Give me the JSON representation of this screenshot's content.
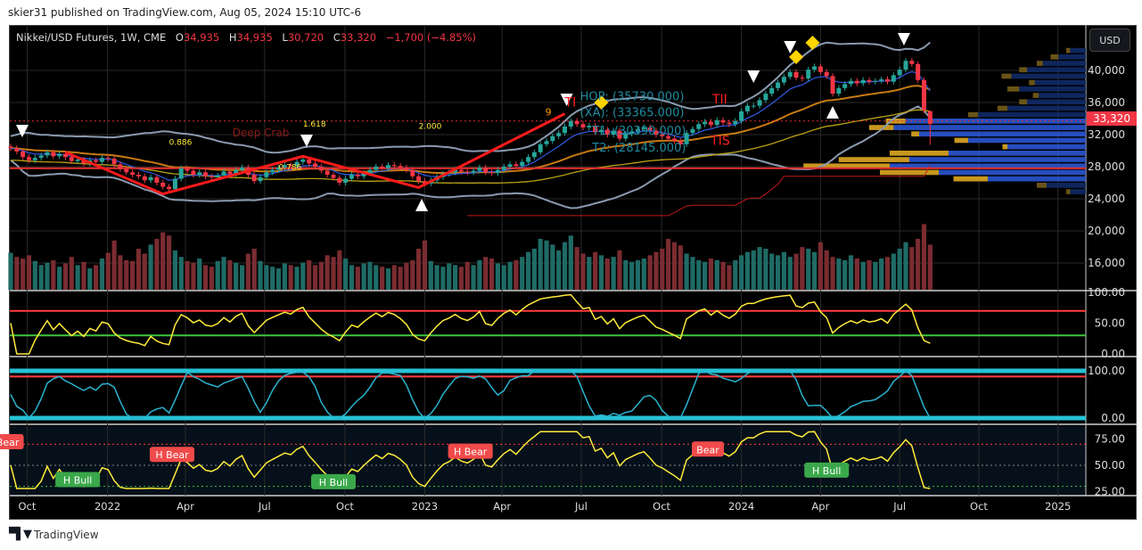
{
  "header": {
    "publisher_line": "skier31 published on TradingView.com, Aug 05, 2024 15:10 UTC-6"
  },
  "legend": {
    "symbol": "Nikkei/USD Futures, 1W, CME",
    "o_label": "O",
    "o": "34,935",
    "h_label": "H",
    "h": "34,935",
    "l_label": "L",
    "l": "30,720",
    "c_label": "C",
    "c": "33,320",
    "change": "−1,700 (−4.85%)"
  },
  "currency_button": "USD",
  "last_price_tag": "33,320",
  "footer": {
    "brand": "TradingView",
    "logo": "TV"
  },
  "colors": {
    "up": "#26a69a",
    "down": "#f23645",
    "up_vol": "#1f6b66",
    "down_vol": "#7a2c31",
    "rsi": "#ffeb3b",
    "stoch": "#2bb3d0",
    "zigzag": "#ff1a1a"
  },
  "chart_data": {
    "type": "candlestick",
    "title": "Nikkei/USD Futures, 1W, CME",
    "first_week": "2021-09-13",
    "closes": [
      30300,
      29900,
      29200,
      28800,
      29100,
      29400,
      29800,
      29300,
      29600,
      29200,
      28700,
      28900,
      28400,
      28800,
      28600,
      29100,
      29000,
      28300,
      27700,
      27300,
      27000,
      26800,
      26300,
      26700,
      26000,
      25500,
      25200,
      26500,
      27800,
      27500,
      27000,
      27300,
      26800,
      26700,
      26900,
      27400,
      27100,
      27600,
      27900,
      27000,
      26200,
      26700,
      27300,
      27600,
      27900,
      28200,
      28100,
      28600,
      28900,
      28400,
      28000,
      27500,
      27000,
      26600,
      26000,
      26500,
      27000,
      26800,
      27200,
      27600,
      28000,
      27800,
      28200,
      28100,
      27900,
      27600,
      26800,
      26200,
      25900,
      26300,
      26700,
      27100,
      27300,
      27600,
      27400,
      27300,
      27500,
      27900,
      27300,
      27200,
      27600,
      28000,
      28300,
      28100,
      28600,
      29200,
      29800,
      30800,
      31200,
      31800,
      32200,
      33000,
      33700,
      33300,
      32900,
      33100,
      32300,
      32600,
      32000,
      32500,
      31500,
      32100,
      32400,
      32700,
      32900,
      32500,
      32000,
      31800,
      31500,
      31200,
      30800,
      32200,
      32700,
      33300,
      33600,
      33200,
      33800,
      33500,
      33300,
      33700,
      34900,
      35600,
      35600,
      36300,
      37100,
      37800,
      38500,
      39200,
      39800,
      39100,
      39000,
      40100,
      40500,
      39800,
      39300,
      37100,
      37800,
      38300,
      38700,
      38400,
      38800,
      38600,
      38700,
      38900,
      38600,
      39400,
      40100,
      41200,
      40800,
      38800,
      35020,
      33320
    ],
    "last_bar": {
      "open": 34935,
      "high": 34935,
      "low": 30720,
      "close": 33320
    },
    "volumes": [
      45,
      40,
      38,
      42,
      35,
      30,
      33,
      36,
      28,
      32,
      40,
      30,
      34,
      26,
      30,
      38,
      45,
      60,
      42,
      36,
      35,
      50,
      44,
      55,
      62,
      70,
      66,
      48,
      40,
      35,
      33,
      38,
      30,
      28,
      35,
      40,
      36,
      33,
      30,
      44,
      50,
      35,
      30,
      28,
      26,
      32,
      30,
      28,
      33,
      36,
      30,
      34,
      42,
      40,
      48,
      38,
      30,
      28,
      32,
      34,
      30,
      28,
      26,
      30,
      28,
      33,
      36,
      50,
      60,
      35,
      30,
      28,
      32,
      30,
      28,
      34,
      30,
      36,
      40,
      38,
      32,
      30,
      34,
      36,
      40,
      46,
      50,
      62,
      60,
      55,
      48,
      58,
      66,
      52,
      44,
      40,
      46,
      42,
      38,
      40,
      48,
      36,
      34,
      36,
      38,
      42,
      46,
      50,
      62,
      58,
      54,
      44,
      40,
      36,
      34,
      38,
      36,
      34,
      30,
      36,
      42,
      46,
      48,
      52,
      50,
      44,
      42,
      46,
      40,
      44,
      52,
      50,
      46,
      58,
      48,
      40,
      38,
      36,
      42,
      38,
      34,
      36,
      34,
      38,
      40,
      44,
      50,
      58,
      52,
      62,
      80,
      55
    ],
    "price_axis": {
      "ticks": [
        {
          "price": 40000,
          "label": "40,000"
        },
        {
          "price": 36000,
          "label": "36,000"
        },
        {
          "price": 32000,
          "label": "32,000"
        },
        {
          "price": 28000,
          "label": "28,000"
        },
        {
          "price": 24000,
          "label": "24,000"
        },
        {
          "price": 20000,
          "label": "20,000"
        },
        {
          "price": 16000,
          "label": "16,000"
        }
      ]
    },
    "time_axis": {
      "labels": [
        {
          "week": 2.7,
          "label": "Oct"
        },
        {
          "week": 15.9,
          "label": "2022"
        },
        {
          "week": 28.7,
          "label": "Apr"
        },
        {
          "week": 41.7,
          "label": "Jul"
        },
        {
          "week": 54.9,
          "label": "Oct"
        },
        {
          "week": 68,
          "label": "2023"
        },
        {
          "week": 80.7,
          "label": "Apr"
        },
        {
          "week": 93.7,
          "label": "Jul"
        },
        {
          "week": 106.9,
          "label": "Oct"
        },
        {
          "week": 120,
          "label": "2024"
        },
        {
          "week": 133,
          "label": "Apr"
        },
        {
          "week": 146,
          "label": "Jul"
        },
        {
          "week": 159,
          "label": "Oct"
        },
        {
          "week": 172,
          "label": "2025"
        }
      ]
    },
    "panes": [
      {
        "name": "rsi",
        "ticks": [
          {
            "value": 100,
            "label": "100.00"
          },
          {
            "value": 50,
            "label": "50.00"
          },
          {
            "value": 0,
            "label": "0.00"
          }
        ],
        "levels": [
          70,
          30
        ]
      },
      {
        "name": "stoch",
        "ticks": [
          {
            "value": 100,
            "label": "100.00"
          },
          {
            "value": 0,
            "label": "0.00"
          }
        ],
        "levels": [
          100,
          88,
          0
        ]
      },
      {
        "name": "rsi-divergence",
        "ticks": [
          {
            "value": 75,
            "label": "75.00"
          },
          {
            "value": 50,
            "label": "50.00"
          },
          {
            "value": 25,
            "label": "25.00"
          }
        ],
        "levels": [
          70,
          50,
          30
        ]
      }
    ],
    "zigzag": [
      {
        "week": 9,
        "price": 29800
      },
      {
        "week": 25,
        "price": 24600
      },
      {
        "week": 48,
        "price": 29300
      },
      {
        "week": 67,
        "price": 25400
      },
      {
        "week": 91,
        "price": 34600
      }
    ],
    "horizontal_levels": [
      {
        "price": 33700,
        "style": "dotted"
      },
      {
        "price": 27800,
        "style": "solid"
      }
    ],
    "markers": [
      {
        "type": "down",
        "week": 1.9,
        "price": 32440
      },
      {
        "type": "down",
        "week": 48.6,
        "price": 31220
      },
      {
        "type": "down",
        "week": 91.3,
        "price": 36330
      },
      {
        "type": "down",
        "week": 122,
        "price": 39220
      },
      {
        "type": "down",
        "week": 128,
        "price": 42890
      },
      {
        "type": "down",
        "week": 146.7,
        "price": 43890
      },
      {
        "type": "up",
        "week": 67.5,
        "price": 23220
      },
      {
        "type": "up",
        "week": 135,
        "price": 34780
      },
      {
        "type": "diamond",
        "week": 97,
        "price": 36000
      },
      {
        "type": "diamond",
        "week": 129,
        "price": 41670
      },
      {
        "type": "diamond",
        "week": 131.7,
        "price": 43440
      }
    ],
    "annotations": [
      {
        "text": "HOP: (35730.000)",
        "week": 93.5,
        "price": 36300,
        "color": "#1e8aa0",
        "size": 13
      },
      {
        "text": "(XA): (33365.000)",
        "week": 93.5,
        "price": 34300,
        "color": "#1e8aa0",
        "size": 13
      },
      {
        "text": "T1: (30390.000)",
        "week": 95.5,
        "price": 32000,
        "color": "#1e8aa0",
        "size": 13
      },
      {
        "text": "T2: (28145.000)",
        "week": 95.5,
        "price": 29900,
        "color": "#1e8aa0",
        "size": 13
      },
      {
        "text": "TI",
        "week": 91,
        "price": 35500,
        "color": "#ff2020",
        "size": 14
      },
      {
        "text": "TII",
        "week": 112,
        "price": 34800,
        "color": "#ff2020",
        "size": 14
      },
      {
        "text": "TIS",
        "week": 105,
        "price": 30700,
        "color": "#ff2020",
        "size": 14
      },
      {
        "text": "1.618",
        "week": 48,
        "price": 33000,
        "color": "#ffeb3b",
        "size": 9
      },
      {
        "text": "2.000",
        "week": 67,
        "price": 32700,
        "color": "#ffeb3b",
        "size": 9
      },
      {
        "text": "0.886",
        "week": 26,
        "price": 30700,
        "color": "#ffeb3b",
        "size": 9
      },
      {
        "text": "0.786",
        "week": 44,
        "price": 27600,
        "color": "#ffeb3b",
        "size": 9
      },
      {
        "text": "Deep Crab",
        "week": 43,
        "price": 31800,
        "color": "#8b1a1a",
        "size": 12
      },
      {
        "text": "9",
        "week": 87.8,
        "price": 34400,
        "color": "#ff9800",
        "size": 11
      }
    ],
    "divergence_labels": [
      {
        "text": "Bear",
        "week": -0.5,
        "value": 72,
        "kind": "bear"
      },
      {
        "text": "H Bear",
        "week": 26.5,
        "value": 60,
        "kind": "bear"
      },
      {
        "text": "H Bull",
        "week": 11,
        "value": 36,
        "kind": "bull"
      },
      {
        "text": "H Bear",
        "week": 75.5,
        "value": 63,
        "kind": "bear"
      },
      {
        "text": "H Bull",
        "week": 53,
        "value": 34,
        "kind": "bull"
      },
      {
        "text": "Bear",
        "week": 114.5,
        "value": 65,
        "kind": "bear"
      },
      {
        "text": "H Bull",
        "week": 134,
        "value": 45,
        "kind": "bull"
      }
    ],
    "volume_profile": [
      {
        "price": 42400,
        "blue": 0.08,
        "gold": 0.04
      },
      {
        "price": 41600,
        "blue": 0.14,
        "gold": 0.08
      },
      {
        "price": 40800,
        "blue": 0.22,
        "gold": 0.06
      },
      {
        "price": 40000,
        "blue": 0.3,
        "gold": 0.08
      },
      {
        "price": 39200,
        "blue": 0.38,
        "gold": 0.1
      },
      {
        "price": 38400,
        "blue": 0.26,
        "gold": 0.06
      },
      {
        "price": 37600,
        "blue": 0.34,
        "gold": 0.12
      },
      {
        "price": 36800,
        "blue": 0.24,
        "gold": 0.06
      },
      {
        "price": 36000,
        "blue": 0.3,
        "gold": 0.08
      },
      {
        "price": 35200,
        "blue": 0.4,
        "gold": 0.1
      },
      {
        "price": 34400,
        "blue": 0.55,
        "gold": 0.1
      },
      {
        "price": 33600,
        "blue": 0.92,
        "gold": 0.2
      },
      {
        "price": 32800,
        "blue": 0.98,
        "gold": 0.25
      },
      {
        "price": 32000,
        "blue": 0.85,
        "gold": 0.08
      },
      {
        "price": 31200,
        "blue": 0.6,
        "gold": 0.14
      },
      {
        "price": 30400,
        "blue": 0.4,
        "gold": 0.05
      },
      {
        "price": 29600,
        "blue": 0.7,
        "gold": 0.6
      },
      {
        "price": 28800,
        "blue": 0.9,
        "gold": 0.72
      },
      {
        "price": 28000,
        "blue": 1.0,
        "gold": 0.88
      },
      {
        "price": 27200,
        "blue": 0.75,
        "gold": 0.6
      },
      {
        "price": 26400,
        "blue": 0.5,
        "gold": 0.35
      },
      {
        "price": 25600,
        "blue": 0.2,
        "gold": 0.1
      },
      {
        "price": 24800,
        "blue": 0.08,
        "gold": 0.04
      }
    ]
  }
}
